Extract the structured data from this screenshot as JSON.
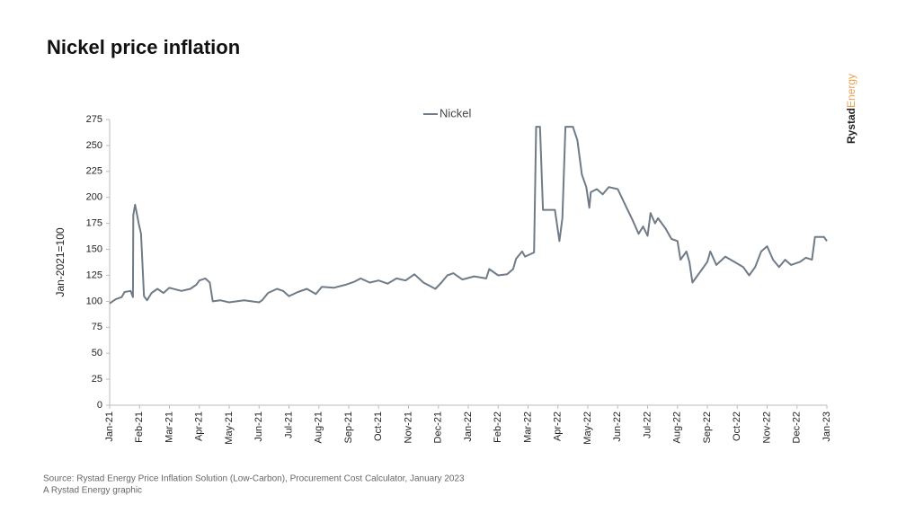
{
  "chart_data": {
    "type": "line",
    "title": "Nickel price inflation",
    "y_label": "Jan-2021=100",
    "source": "Source: Rystad Energy Price Inflation Solution (Low-Carbon), Procurement Cost Calculator, January 2023",
    "credit": "A Rystad Energy graphic",
    "brand": [
      "Rystad",
      "Energy"
    ],
    "legend": "top-center",
    "x": [
      0,
      0.2,
      0.4,
      0.5,
      0.7,
      0.78,
      0.79,
      0.85,
      0.97,
      1.05,
      1.15,
      1.25,
      1.4,
      1.6,
      1.8,
      2.0,
      2.4,
      2.7,
      2.9,
      3.0,
      3.2,
      3.35,
      3.45,
      3.7,
      4.0,
      4.5,
      5.0,
      5.1,
      5.3,
      5.6,
      5.8,
      6.0,
      6.3,
      6.6,
      6.9,
      7.1,
      7.5,
      7.9,
      8.2,
      8.4,
      8.7,
      9.0,
      9.3,
      9.6,
      9.9,
      10.2,
      10.5,
      10.9,
      11.1,
      11.3,
      11.5,
      11.8,
      12.2,
      12.6,
      12.7,
      13.0,
      13.3,
      13.5,
      13.6,
      13.8,
      13.9,
      14.2,
      14.27,
      14.4,
      14.5,
      14.9,
      15.05,
      15.15,
      15.25,
      15.5,
      15.65,
      15.8,
      15.95,
      16.05,
      16.1,
      16.3,
      16.5,
      16.7,
      17.0,
      17.3,
      17.5,
      17.7,
      17.85,
      18.0,
      18.1,
      18.25,
      18.35,
      18.6,
      18.8,
      19.0,
      19.1,
      19.3,
      19.4,
      19.5,
      19.8,
      20.0,
      20.1,
      20.3,
      20.6,
      20.9,
      21.2,
      21.4,
      21.6,
      21.8,
      22.0,
      22.2,
      22.4,
      22.6,
      22.8,
      23.1,
      23.3,
      23.5,
      23.6,
      23.9,
      24.0
    ],
    "series": [
      {
        "name": "Nickel",
        "color": "#6f7b87",
        "values": [
          98,
          102,
          104,
          109,
          110,
          104,
          183,
          193,
          175,
          165,
          105,
          101,
          108,
          112,
          108,
          113,
          110,
          112,
          116,
          120,
          122,
          118,
          100,
          101,
          99,
          101,
          99,
          101,
          108,
          112,
          110,
          105,
          109,
          112,
          107,
          114,
          113,
          116,
          119,
          122,
          118,
          120,
          117,
          122,
          120,
          126,
          118,
          112,
          118,
          125,
          127,
          121,
          124,
          122,
          131,
          125,
          126,
          131,
          141,
          148,
          143,
          147,
          268,
          268,
          188,
          188,
          158,
          180,
          268,
          268,
          255,
          222,
          210,
          190,
          205,
          208,
          203,
          210,
          208,
          190,
          178,
          165,
          172,
          163,
          185,
          175,
          180,
          170,
          160,
          158,
          140,
          148,
          138,
          118,
          130,
          138,
          148,
          135,
          143,
          138,
          133,
          125,
          133,
          148,
          153,
          140,
          133,
          140,
          135,
          138,
          142,
          140,
          162,
          162,
          158
        ]
      }
    ],
    "xlim": [
      0,
      24
    ],
    "xticks": [
      {
        "value": 0,
        "label": "Jan-21"
      },
      {
        "value": 1,
        "label": "Feb-21"
      },
      {
        "value": 2,
        "label": "Mar-21"
      },
      {
        "value": 3,
        "label": "Apr-21"
      },
      {
        "value": 4,
        "label": "May-21"
      },
      {
        "value": 5,
        "label": "Jun-21"
      },
      {
        "value": 6,
        "label": "Jul-21"
      },
      {
        "value": 7,
        "label": "Aug-21"
      },
      {
        "value": 8,
        "label": "Sep-21"
      },
      {
        "value": 9,
        "label": "Oct-21"
      },
      {
        "value": 10,
        "label": "Nov-21"
      },
      {
        "value": 11,
        "label": "Dec-21"
      },
      {
        "value": 12,
        "label": "Jan-22"
      },
      {
        "value": 13,
        "label": "Feb-22"
      },
      {
        "value": 14,
        "label": "Mar-22"
      },
      {
        "value": 15,
        "label": "Apr-22"
      },
      {
        "value": 16,
        "label": "May-22"
      },
      {
        "value": 17,
        "label": "Jun-22"
      },
      {
        "value": 18,
        "label": "Jul-22"
      },
      {
        "value": 19,
        "label": "Aug-22"
      },
      {
        "value": 20,
        "label": "Sep-22"
      },
      {
        "value": 21,
        "label": "Oct-22"
      },
      {
        "value": 22,
        "label": "Nov-22"
      },
      {
        "value": 23,
        "label": "Dec-22"
      },
      {
        "value": 24,
        "label": "Jan-23"
      }
    ],
    "ylim": [
      0,
      275
    ],
    "yticks": [
      0,
      25,
      50,
      75,
      100,
      125,
      150,
      175,
      200,
      225,
      250,
      275
    ],
    "grid": false
  }
}
